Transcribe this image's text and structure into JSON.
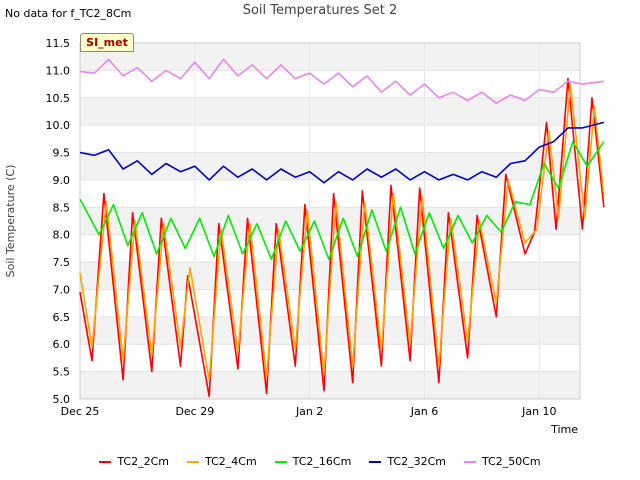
{
  "note": "No data for f_TC2_8Cm",
  "badge": "SI_met",
  "chart_data": {
    "type": "line",
    "title": "Soil Temperatures Set 2",
    "xlabel": "Time",
    "ylabel": "Soil Temperature (C)",
    "xlim": [
      "2024-12-25",
      "2025-01-11 10:00"
    ],
    "ylim": [
      5.0,
      11.5
    ],
    "y_ticks": [
      5.0,
      5.5,
      6.0,
      6.5,
      7.0,
      7.5,
      8.0,
      8.5,
      9.0,
      9.5,
      10.0,
      10.5,
      11.0,
      11.5
    ],
    "x_ticks": [
      {
        "label": "Dec 25",
        "date": "2024-12-25"
      },
      {
        "label": "Dec 29",
        "date": "2024-12-29"
      },
      {
        "label": "Jan 2",
        "date": "2025-01-02"
      },
      {
        "label": "Jan 6",
        "date": "2025-01-06"
      },
      {
        "label": "Jan 10",
        "date": "2025-01-10"
      }
    ],
    "banded_background": true,
    "legend_position": "bottom",
    "series": [
      {
        "name": "TC2_2Cm",
        "color": "#ff0000",
        "points": [
          [
            "2024-12-25 00:00",
            6.95
          ],
          [
            "2024-12-25 10:00",
            5.7
          ],
          [
            "2024-12-25 20:00",
            8.75
          ],
          [
            "2024-12-26 12:00",
            5.35
          ],
          [
            "2024-12-26 20:00",
            8.4
          ],
          [
            "2024-12-27 12:00",
            5.5
          ],
          [
            "2024-12-27 20:00",
            8.3
          ],
          [
            "2024-12-28 12:00",
            5.6
          ],
          [
            "2024-12-28 18:00",
            7.25
          ],
          [
            "2024-12-29 12:00",
            5.05
          ],
          [
            "2024-12-29 20:00",
            8.2
          ],
          [
            "2024-12-30 12:00",
            5.55
          ],
          [
            "2024-12-30 20:00",
            8.3
          ],
          [
            "2024-12-31 12:00",
            5.1
          ],
          [
            "2024-12-31 20:00",
            8.2
          ],
          [
            "2025-01-01 12:00",
            5.6
          ],
          [
            "2025-01-01 20:00",
            8.55
          ],
          [
            "2025-01-02 12:00",
            5.15
          ],
          [
            "2025-01-02 20:00",
            8.75
          ],
          [
            "2025-01-03 12:00",
            5.3
          ],
          [
            "2025-01-03 20:00",
            8.8
          ],
          [
            "2025-01-04 12:00",
            5.6
          ],
          [
            "2025-01-04 20:00",
            8.9
          ],
          [
            "2025-01-05 12:00",
            5.7
          ],
          [
            "2025-01-05 20:00",
            8.85
          ],
          [
            "2025-01-06 12:00",
            5.3
          ],
          [
            "2025-01-06 20:00",
            8.4
          ],
          [
            "2025-01-07 12:00",
            5.75
          ],
          [
            "2025-01-07 20:00",
            8.35
          ],
          [
            "2025-01-08 12:00",
            6.5
          ],
          [
            "2025-01-08 20:00",
            9.1
          ],
          [
            "2025-01-09 12:00",
            7.65
          ],
          [
            "2025-01-09 20:00",
            8.05
          ],
          [
            "2025-01-10 06:00",
            10.05
          ],
          [
            "2025-01-10 14:00",
            8.1
          ],
          [
            "2025-01-11 00:00",
            10.85
          ],
          [
            "2025-01-11 12:00",
            8.1
          ],
          [
            "2025-01-11 20:00",
            10.5
          ],
          [
            "2025-01-12 06:00",
            8.5
          ]
        ]
      },
      {
        "name": "TC2_4Cm",
        "color": "#ffa500",
        "points": [
          [
            "2024-12-25 00:00",
            7.3
          ],
          [
            "2024-12-25 10:00",
            5.95
          ],
          [
            "2024-12-25 22:00",
            8.6
          ],
          [
            "2024-12-26 12:00",
            5.7
          ],
          [
            "2024-12-26 22:00",
            8.25
          ],
          [
            "2024-12-27 12:00",
            5.8
          ],
          [
            "2024-12-27 22:00",
            8.2
          ],
          [
            "2024-12-28 12:00",
            5.95
          ],
          [
            "2024-12-28 20:00",
            7.4
          ],
          [
            "2024-12-29 12:00",
            5.35
          ],
          [
            "2024-12-29 22:00",
            8.1
          ],
          [
            "2024-12-30 12:00",
            5.85
          ],
          [
            "2024-12-30 22:00",
            8.2
          ],
          [
            "2024-12-31 12:00",
            5.4
          ],
          [
            "2024-12-31 22:00",
            8.1
          ],
          [
            "2025-01-01 12:00",
            5.9
          ],
          [
            "2025-01-01 22:00",
            8.45
          ],
          [
            "2025-01-02 12:00",
            5.45
          ],
          [
            "2025-01-02 22:00",
            8.6
          ],
          [
            "2025-01-03 12:00",
            5.6
          ],
          [
            "2025-01-03 22:00",
            8.6
          ],
          [
            "2025-01-04 12:00",
            5.9
          ],
          [
            "2025-01-04 22:00",
            8.75
          ],
          [
            "2025-01-05 12:00",
            6.0
          ],
          [
            "2025-01-05 22:00",
            8.7
          ],
          [
            "2025-01-06 12:00",
            5.6
          ],
          [
            "2025-01-06 22:00",
            8.3
          ],
          [
            "2025-01-07 12:00",
            6.05
          ],
          [
            "2025-01-07 22:00",
            8.25
          ],
          [
            "2025-01-08 12:00",
            6.75
          ],
          [
            "2025-01-08 22:00",
            9.0
          ],
          [
            "2025-01-09 12:00",
            7.85
          ],
          [
            "2025-01-09 22:00",
            8.1
          ],
          [
            "2025-01-10 08:00",
            9.9
          ],
          [
            "2025-01-10 16:00",
            8.3
          ],
          [
            "2025-01-11 02:00",
            10.75
          ],
          [
            "2025-01-11 14:00",
            8.3
          ],
          [
            "2025-01-11 22:00",
            10.35
          ],
          [
            "2025-01-12 06:00",
            8.7
          ]
        ]
      },
      {
        "name": "TC2_16Cm",
        "color": "#00ee00",
        "points": [
          [
            "2024-12-25 00:00",
            8.65
          ],
          [
            "2024-12-25 16:00",
            8.0
          ],
          [
            "2024-12-26 04:00",
            8.55
          ],
          [
            "2024-12-26 16:00",
            7.8
          ],
          [
            "2024-12-27 04:00",
            8.4
          ],
          [
            "2024-12-27 16:00",
            7.65
          ],
          [
            "2024-12-28 04:00",
            8.3
          ],
          [
            "2024-12-28 16:00",
            7.75
          ],
          [
            "2024-12-29 04:00",
            8.3
          ],
          [
            "2024-12-29 16:00",
            7.6
          ],
          [
            "2024-12-30 04:00",
            8.35
          ],
          [
            "2024-12-30 16:00",
            7.65
          ],
          [
            "2024-12-31 04:00",
            8.2
          ],
          [
            "2024-12-31 16:00",
            7.55
          ],
          [
            "2025-01-01 04:00",
            8.25
          ],
          [
            "2025-01-01 16:00",
            7.7
          ],
          [
            "2025-01-02 04:00",
            8.25
          ],
          [
            "2025-01-02 16:00",
            7.55
          ],
          [
            "2025-01-03 04:00",
            8.3
          ],
          [
            "2025-01-03 16:00",
            7.6
          ],
          [
            "2025-01-04 04:00",
            8.45
          ],
          [
            "2025-01-04 16:00",
            7.7
          ],
          [
            "2025-01-05 04:00",
            8.5
          ],
          [
            "2025-01-05 16:00",
            7.65
          ],
          [
            "2025-01-06 04:00",
            8.4
          ],
          [
            "2025-01-06 16:00",
            7.75
          ],
          [
            "2025-01-07 04:00",
            8.35
          ],
          [
            "2025-01-07 16:00",
            7.85
          ],
          [
            "2025-01-08 04:00",
            8.35
          ],
          [
            "2025-01-08 16:00",
            8.05
          ],
          [
            "2025-01-09 04:00",
            8.6
          ],
          [
            "2025-01-09 16:00",
            8.55
          ],
          [
            "2025-01-10 04:00",
            9.3
          ],
          [
            "2025-01-10 16:00",
            8.85
          ],
          [
            "2025-01-11 04:00",
            9.7
          ],
          [
            "2025-01-11 16:00",
            9.25
          ],
          [
            "2025-01-12 06:00",
            9.7
          ]
        ]
      },
      {
        "name": "TC2_32Cm",
        "color": "#0000cc",
        "points": [
          [
            "2024-12-25 00:00",
            9.5
          ],
          [
            "2024-12-25 12:00",
            9.45
          ],
          [
            "2024-12-26 00:00",
            9.55
          ],
          [
            "2024-12-26 12:00",
            9.2
          ],
          [
            "2024-12-27 00:00",
            9.35
          ],
          [
            "2024-12-27 12:00",
            9.1
          ],
          [
            "2024-12-28 00:00",
            9.3
          ],
          [
            "2024-12-28 12:00",
            9.15
          ],
          [
            "2024-12-29 00:00",
            9.25
          ],
          [
            "2024-12-29 12:00",
            9.0
          ],
          [
            "2024-12-30 00:00",
            9.25
          ],
          [
            "2024-12-30 12:00",
            9.05
          ],
          [
            "2024-12-31 00:00",
            9.2
          ],
          [
            "2024-12-31 12:00",
            9.0
          ],
          [
            "2025-01-01 00:00",
            9.2
          ],
          [
            "2025-01-01 12:00",
            9.05
          ],
          [
            "2025-01-02 00:00",
            9.15
          ],
          [
            "2025-01-02 12:00",
            8.95
          ],
          [
            "2025-01-03 00:00",
            9.15
          ],
          [
            "2025-01-03 12:00",
            9.0
          ],
          [
            "2025-01-04 00:00",
            9.2
          ],
          [
            "2025-01-04 12:00",
            9.05
          ],
          [
            "2025-01-05 00:00",
            9.2
          ],
          [
            "2025-01-05 12:00",
            9.0
          ],
          [
            "2025-01-06 00:00",
            9.15
          ],
          [
            "2025-01-06 12:00",
            9.0
          ],
          [
            "2025-01-07 00:00",
            9.1
          ],
          [
            "2025-01-07 12:00",
            9.0
          ],
          [
            "2025-01-08 00:00",
            9.15
          ],
          [
            "2025-01-08 12:00",
            9.05
          ],
          [
            "2025-01-09 00:00",
            9.3
          ],
          [
            "2025-01-09 12:00",
            9.35
          ],
          [
            "2025-01-10 00:00",
            9.6
          ],
          [
            "2025-01-10 12:00",
            9.7
          ],
          [
            "2025-01-11 00:00",
            9.95
          ],
          [
            "2025-01-11 12:00",
            9.95
          ],
          [
            "2025-01-12 06:00",
            10.05
          ]
        ]
      },
      {
        "name": "TC2_50Cm",
        "color": "#ee82ee",
        "points": [
          [
            "2024-12-25 00:00",
            10.98
          ],
          [
            "2024-12-25 12:00",
            10.95
          ],
          [
            "2024-12-26 00:00",
            11.2
          ],
          [
            "2024-12-26 12:00",
            10.9
          ],
          [
            "2024-12-27 00:00",
            11.05
          ],
          [
            "2024-12-27 12:00",
            10.8
          ],
          [
            "2024-12-28 00:00",
            11.0
          ],
          [
            "2024-12-28 12:00",
            10.85
          ],
          [
            "2024-12-29 00:00",
            11.15
          ],
          [
            "2024-12-29 12:00",
            10.85
          ],
          [
            "2024-12-30 00:00",
            11.2
          ],
          [
            "2024-12-30 12:00",
            10.9
          ],
          [
            "2024-12-31 00:00",
            11.1
          ],
          [
            "2024-12-31 12:00",
            10.85
          ],
          [
            "2025-01-01 00:00",
            11.1
          ],
          [
            "2025-01-01 12:00",
            10.85
          ],
          [
            "2025-01-02 00:00",
            10.95
          ],
          [
            "2025-01-02 12:00",
            10.75
          ],
          [
            "2025-01-03 00:00",
            10.95
          ],
          [
            "2025-01-03 12:00",
            10.7
          ],
          [
            "2025-01-04 00:00",
            10.9
          ],
          [
            "2025-01-04 12:00",
            10.6
          ],
          [
            "2025-01-05 00:00",
            10.8
          ],
          [
            "2025-01-05 12:00",
            10.55
          ],
          [
            "2025-01-06 00:00",
            10.75
          ],
          [
            "2025-01-06 12:00",
            10.5
          ],
          [
            "2025-01-07 00:00",
            10.6
          ],
          [
            "2025-01-07 12:00",
            10.45
          ],
          [
            "2025-01-08 00:00",
            10.6
          ],
          [
            "2025-01-08 12:00",
            10.4
          ],
          [
            "2025-01-09 00:00",
            10.55
          ],
          [
            "2025-01-09 12:00",
            10.45
          ],
          [
            "2025-01-10 00:00",
            10.65
          ],
          [
            "2025-01-10 12:00",
            10.6
          ],
          [
            "2025-01-11 00:00",
            10.8
          ],
          [
            "2025-01-11 12:00",
            10.75
          ],
          [
            "2025-01-12 06:00",
            10.8
          ]
        ]
      }
    ]
  }
}
